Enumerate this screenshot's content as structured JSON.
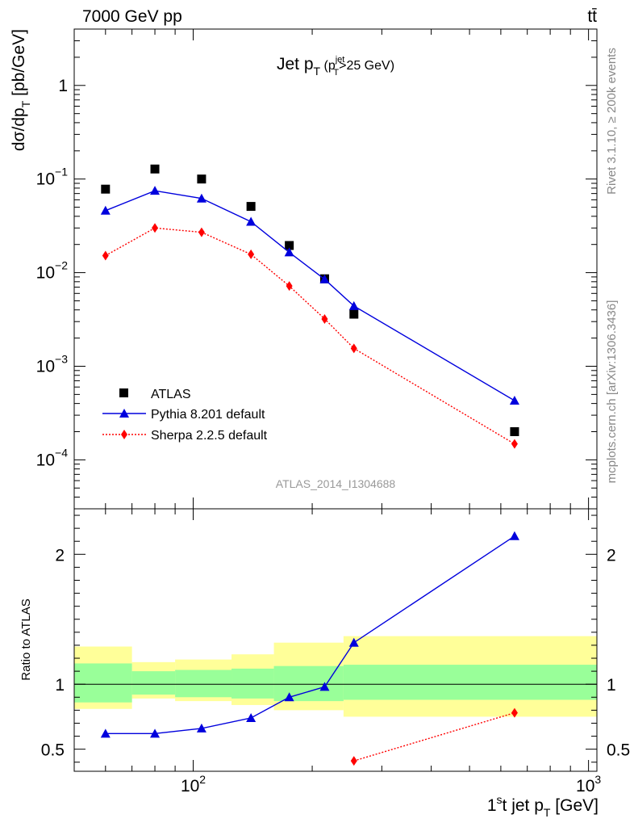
{
  "header": {
    "energy_label": "7000 GeV pp",
    "process_label": "tt̄"
  },
  "side_labels": {
    "rivet": "Rivet 3.1.10, ≥ 200k events",
    "mcplots": "mcplots.cern.ch [arXiv:1306.3436]"
  },
  "analysis_id": "ATLAS_2014_I1304688",
  "chart_data": [
    {
      "type": "scatter",
      "panel": "main",
      "title": "Jet p_T (p_T^jet>25 GeV)",
      "title_main": "Jet p",
      "title_sub": "T",
      "title_paren_open": " (p",
      "title_paren_sup": "jet",
      "title_paren_sub": "T",
      "title_paren_close": ">25 GeV)",
      "ylabel": "dσ/dp_T [pb/GeV]",
      "ylabel_main": "dσ/dp",
      "ylabel_sub": "T",
      "ylabel_unit": " [pb/GeV]",
      "xscale": "log",
      "yscale": "log",
      "xlim": [
        50,
        1050
      ],
      "ylim": [
        3e-05,
        4
      ],
      "y_tick_labels": [
        {
          "value": 0.0001,
          "base": "10",
          "exp": "−4"
        },
        {
          "value": 0.001,
          "base": "10",
          "exp": "−3"
        },
        {
          "value": 0.01,
          "base": "10",
          "exp": "−2"
        },
        {
          "value": 0.1,
          "base": "10",
          "exp": "−1"
        },
        {
          "value": 1,
          "base": "1",
          "exp": ""
        }
      ],
      "legend_position": "bottom-left",
      "series": [
        {
          "name": "ATLAS",
          "marker": "square",
          "color": "#000000",
          "line": "none",
          "x": [
            60,
            80,
            105,
            140,
            175,
            215,
            255,
            650
          ],
          "y": [
            0.078,
            0.128,
            0.1,
            0.051,
            0.0195,
            0.0086,
            0.0036,
            0.0002
          ]
        },
        {
          "name": "Pythia 8.201 default",
          "marker": "triangle",
          "color": "#0000dd",
          "line": "solid",
          "x": [
            60,
            80,
            105,
            140,
            175,
            215,
            255,
            650
          ],
          "y": [
            0.046,
            0.075,
            0.062,
            0.035,
            0.0165,
            0.0085,
            0.0044,
            0.00043
          ]
        },
        {
          "name": "Sherpa 2.2.5 default",
          "marker": "diamond",
          "color": "#ff0000",
          "line": "dotted",
          "x": [
            60,
            80,
            105,
            140,
            175,
            215,
            255,
            650
          ],
          "y": [
            0.0152,
            0.03,
            0.027,
            0.0157,
            0.0072,
            0.0032,
            0.00155,
            0.000148
          ]
        }
      ]
    },
    {
      "type": "line",
      "panel": "ratio",
      "ylabel": "Ratio to ATLAS",
      "xlabel": "1^st jet p_T [GeV]",
      "xlabel_main": "1",
      "xlabel_sup": "s",
      "xlabel_mid": "t jet p",
      "xlabel_sub": "T",
      "xlabel_unit": " [GeV]",
      "xscale": "log",
      "xlim": [
        50,
        1050
      ],
      "ylim": [
        0.33,
        2.35
      ],
      "y_ticks": [
        0.5,
        1,
        2
      ],
      "y_tick_labels": [
        "0.5",
        "1",
        "2"
      ],
      "x_tick_labels": [
        {
          "value": 100,
          "base": "10",
          "exp": "2"
        },
        {
          "value": 1000,
          "base": "10",
          "exp": "3"
        }
      ],
      "bands": [
        {
          "x0": 50,
          "x1": 70,
          "inner": [
            0.86,
            1.16
          ],
          "outer": [
            0.81,
            1.29
          ]
        },
        {
          "x0": 70,
          "x1": 90,
          "inner": [
            0.92,
            1.1
          ],
          "outer": [
            0.89,
            1.17
          ]
        },
        {
          "x0": 90,
          "x1": 125,
          "inner": [
            0.9,
            1.11
          ],
          "outer": [
            0.87,
            1.19
          ]
        },
        {
          "x0": 125,
          "x1": 160,
          "inner": [
            0.89,
            1.12
          ],
          "outer": [
            0.84,
            1.23
          ]
        },
        {
          "x0": 160,
          "x1": 240,
          "inner": [
            0.87,
            1.14
          ],
          "outer": [
            0.8,
            1.32
          ]
        },
        {
          "x0": 240,
          "x1": 1050,
          "inner": [
            0.88,
            1.15
          ],
          "outer": [
            0.75,
            1.37
          ]
        }
      ],
      "band_colors": {
        "inner": "#99ff99",
        "outer": "#ffff99"
      },
      "series": [
        {
          "name": "Pythia 8.201 default",
          "marker": "triangle",
          "color": "#0000dd",
          "line": "solid",
          "x": [
            60,
            80,
            105,
            140,
            175,
            215,
            255,
            650
          ],
          "y": [
            0.62,
            0.62,
            0.66,
            0.74,
            0.9,
            0.98,
            1.32,
            2.14
          ]
        },
        {
          "name": "Sherpa 2.2.5 default",
          "marker": "diamond",
          "color": "#ff0000",
          "line": "dotted",
          "x": [
            255,
            650
          ],
          "y": [
            0.41,
            0.78
          ]
        }
      ]
    }
  ]
}
